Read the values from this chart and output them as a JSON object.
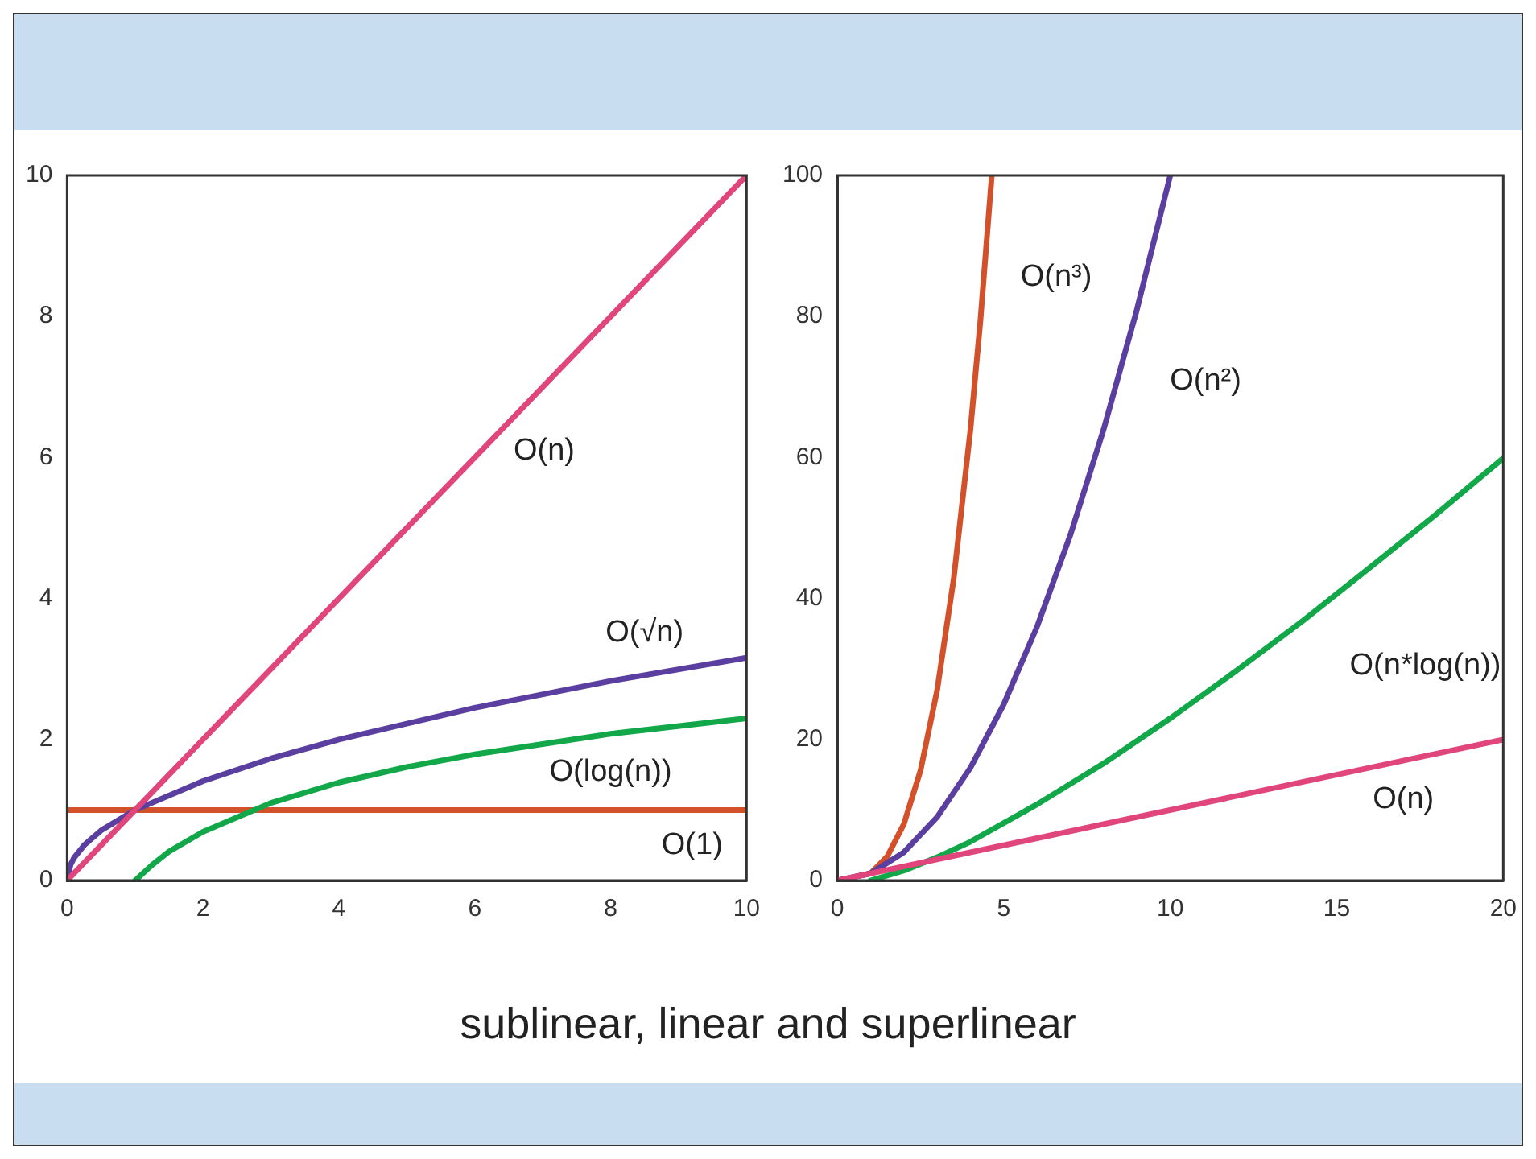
{
  "chart_data": [
    {
      "type": "line",
      "marker": "none",
      "line_style": "solid",
      "grid": false,
      "legend": false,
      "xlim": [
        0,
        10
      ],
      "ylim": [
        0,
        10
      ],
      "xticks": [
        0,
        2,
        4,
        6,
        8,
        10
      ],
      "yticks": [
        0,
        2,
        4,
        6,
        8,
        10
      ],
      "series": [
        {
          "name": "O(n)",
          "color": "#e0457b",
          "x": [
            0,
            10
          ],
          "values": [
            0,
            10
          ]
        },
        {
          "name": "O(√n)",
          "color": "#5a3fa0",
          "x": [
            0,
            0.05,
            0.1,
            0.25,
            0.5,
            1,
            2,
            3,
            4,
            6,
            8,
            10
          ],
          "values": [
            0,
            0.22,
            0.32,
            0.5,
            0.71,
            1,
            1.41,
            1.73,
            2,
            2.45,
            2.83,
            3.16
          ]
        },
        {
          "name": "O(log(n))",
          "color": "#12a84a",
          "x": [
            1,
            1.25,
            1.5,
            2,
            3,
            4,
            5,
            6,
            8,
            10
          ],
          "values": [
            0,
            0.22,
            0.41,
            0.69,
            1.1,
            1.39,
            1.61,
            1.79,
            2.08,
            2.3
          ]
        },
        {
          "name": "O(1)",
          "color": "#d2512b",
          "x": [
            0,
            10
          ],
          "values": [
            1,
            1
          ]
        }
      ]
    },
    {
      "type": "line",
      "marker": "none",
      "line_style": "solid",
      "grid": false,
      "legend": false,
      "xlim": [
        0,
        20
      ],
      "ylim": [
        0,
        100
      ],
      "xticks": [
        0,
        5,
        10,
        15,
        20
      ],
      "yticks": [
        0,
        20,
        40,
        60,
        80,
        100
      ],
      "series": [
        {
          "name": "O(n)",
          "color": "#e0457b",
          "x": [
            0,
            20
          ],
          "values": [
            0,
            20
          ]
        },
        {
          "name": "O(n*log(n))",
          "color": "#12a84a",
          "x": [
            1,
            2,
            3,
            4,
            6,
            8,
            10,
            12,
            14,
            16,
            18,
            20
          ],
          "values": [
            0,
            1.4,
            3.3,
            5.5,
            10.8,
            16.6,
            23,
            29.8,
            36.9,
            44.4,
            52,
            59.9
          ]
        },
        {
          "name": "O(n²)",
          "color": "#5a3fa0",
          "x": [
            0,
            1,
            2,
            3,
            4,
            5,
            6,
            7,
            8,
            9,
            10
          ],
          "values": [
            0,
            1,
            4,
            9,
            16,
            25,
            36,
            49,
            64,
            81,
            100
          ]
        },
        {
          "name": "O(n³)",
          "color": "#d2512b",
          "x": [
            0,
            1,
            1.5,
            2,
            2.5,
            3,
            3.5,
            4,
            4.3,
            4.64
          ],
          "values": [
            0,
            1,
            3.4,
            8,
            15.6,
            27,
            42.9,
            64,
            79.5,
            100
          ]
        }
      ]
    },
    {
      "type": "other",
      "title": "sublinear, linear and superlinear"
    }
  ]
}
